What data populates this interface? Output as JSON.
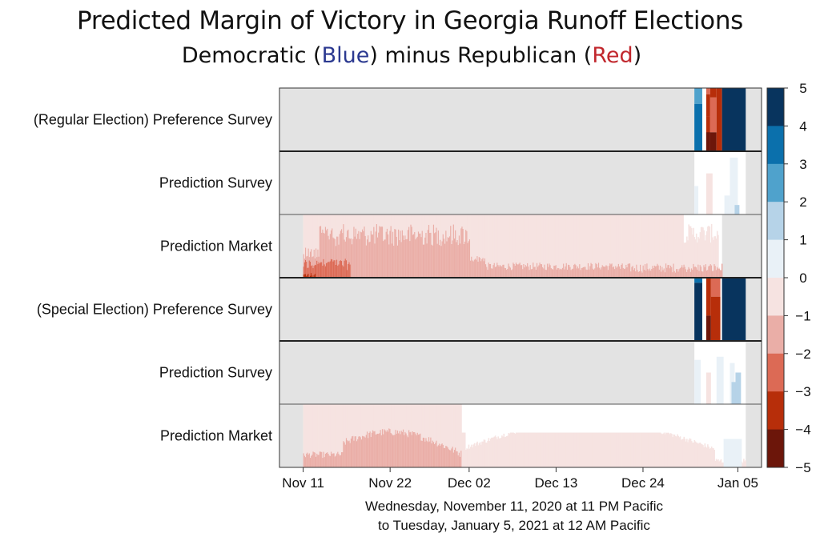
{
  "header": {
    "title": "Predicted Margin of  Victory in Georgia Runoff Elections",
    "subtitle_prefix": "Democratic (",
    "subtitle_blue": "Blue",
    "subtitle_mid": ") minus Republican (",
    "subtitle_red": "Red",
    "subtitle_suffix": ")"
  },
  "xcaption": {
    "line1": "Wednesday, November 11, 2020 at 11 PM Pacific",
    "line2": "to Tuesday, January 5, 2021 at 12 AM Pacific"
  },
  "chart_data": {
    "type": "heatmap",
    "title": "Predicted Margin of  Victory in Georgia Runoff Elections",
    "subtitle": "Democratic (Blue) minus Republican (Red)",
    "x_tick_labels": [
      "Nov 11",
      "Nov 22",
      "Dec 02",
      "Dec 13",
      "Dec 24",
      "Jan 05"
    ],
    "x_tick_day_offsets": [
      0,
      11,
      21,
      32,
      43,
      55
    ],
    "x_range_days": [
      -3,
      58
    ],
    "rows": [
      {
        "label": "(Regular Election) Preference Survey",
        "kind": "survey_pref"
      },
      {
        "label": "Prediction Survey",
        "kind": "survey_pred"
      },
      {
        "label": "Prediction Market",
        "kind": "market"
      },
      {
        "label": "(Special Election) Preference Survey",
        "kind": "survey_pref"
      },
      {
        "label": "Prediction Survey",
        "kind": "survey_pred"
      },
      {
        "label": "Prediction Market",
        "kind": "market"
      }
    ],
    "row_groups": [
      "Regular Election",
      "Special Election"
    ],
    "colorbar": {
      "ticks": [
        "5",
        "4",
        "3",
        "2",
        "1",
        "0",
        "−1",
        "−2",
        "−3",
        "−4",
        "−5"
      ],
      "colors": [
        "#08345e",
        "#0b70ac",
        "#4fa2cc",
        "#b6d3e8",
        "#e9f1f7",
        "#f6e3e1",
        "#eaaea7",
        "#dc6a55",
        "#b72e0a",
        "#6c160a"
      ],
      "range": [
        -5,
        5
      ]
    },
    "no_data_color": "#e3e3e3",
    "zero_color": "#ffffff",
    "series": [
      {
        "row": 0,
        "segments": [
          {
            "from_day": 49.5,
            "to_day": 50.5,
            "top_value": 2.5,
            "bottom_value": 3.5
          },
          {
            "from_day": 51,
            "to_day": 52,
            "top_value": -3.5,
            "bottom_value": -4.5
          },
          {
            "from_day": 53,
            "to_day": 56,
            "value": 4.5
          }
        ]
      },
      {
        "row": 1,
        "segments": [
          {
            "from_day": 49.5,
            "to_day": 56,
            "value": 0.3
          }
        ]
      },
      {
        "row": 2,
        "segments": [
          {
            "from_day": 0,
            "to_day": 53,
            "peak_value": -3.5,
            "typical_value": -1.2
          }
        ]
      },
      {
        "row": 3,
        "segments": [
          {
            "from_day": 49.5,
            "to_day": 50.5,
            "value": 4.5
          },
          {
            "from_day": 51,
            "to_day": 53,
            "value": -3.5
          },
          {
            "from_day": 53,
            "to_day": 56,
            "value": 4.5
          }
        ]
      },
      {
        "row": 4,
        "segments": [
          {
            "from_day": 49.5,
            "to_day": 56,
            "value": 0.5
          }
        ]
      },
      {
        "row": 5,
        "segments": [
          {
            "from_day": 0,
            "to_day": 56,
            "peak_value": -2,
            "typical_value": -0.6
          }
        ]
      }
    ]
  }
}
